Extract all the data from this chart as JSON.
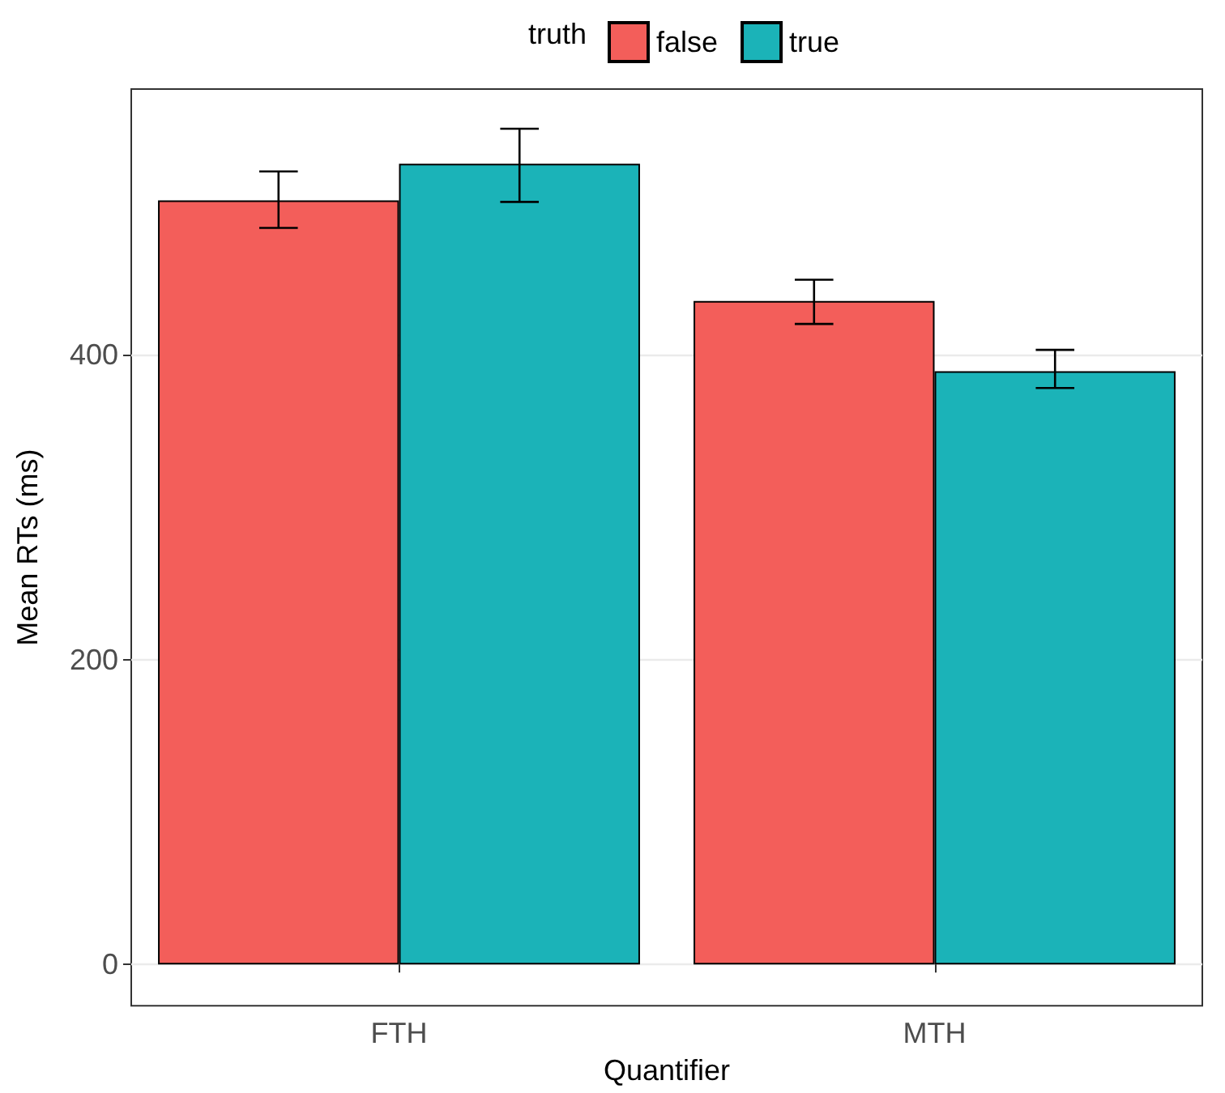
{
  "chart_data": {
    "type": "bar",
    "xlabel": "Quantifier",
    "ylabel": "Mean RTs (ms)",
    "legend_title": "truth",
    "categories": [
      "FTH",
      "MTH"
    ],
    "series": [
      {
        "name": "false",
        "color": "#f35e5a",
        "values": [
          501,
          435
        ],
        "errors": [
          [
            483,
            520
          ],
          [
            420,
            449
          ]
        ]
      },
      {
        "name": "true",
        "color": "#1bb3b8",
        "values": [
          525,
          389
        ],
        "errors": [
          [
            500,
            548
          ],
          [
            378,
            403
          ]
        ]
      }
    ],
    "ylim": [
      -27,
      574
    ],
    "yticks": [
      0,
      200,
      400
    ],
    "grid": true,
    "legend": "top"
  }
}
